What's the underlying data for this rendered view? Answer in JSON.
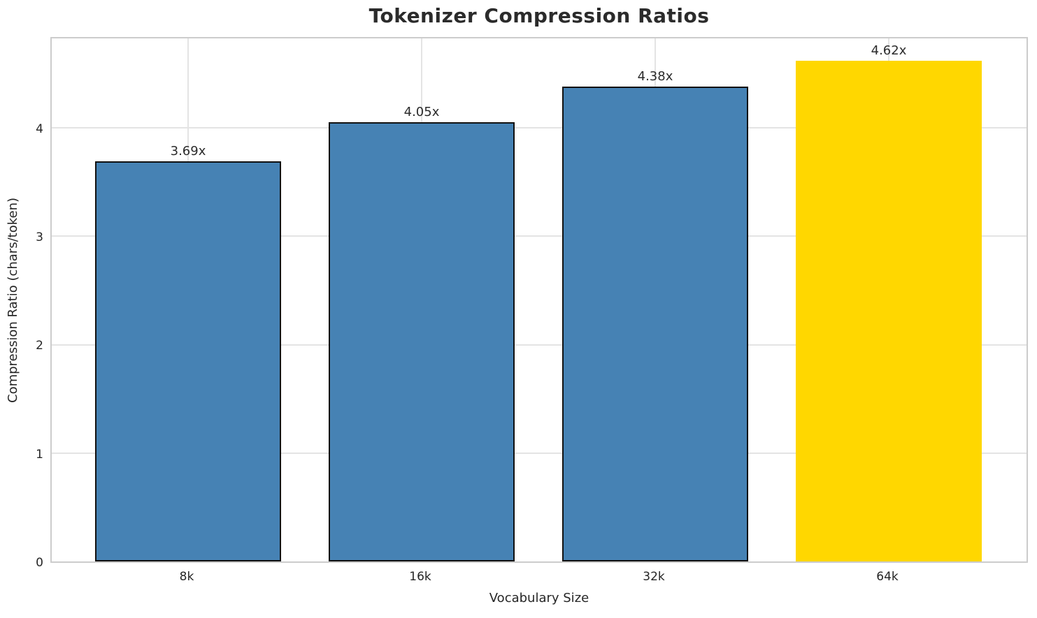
{
  "chart_data": {
    "type": "bar",
    "title": "Tokenizer Compression Ratios",
    "xlabel": "Vocabulary Size",
    "ylabel": "Compression Ratio (chars/token)",
    "categories": [
      "8k",
      "16k",
      "32k",
      "64k"
    ],
    "values": [
      3.69,
      4.05,
      4.38,
      4.62
    ],
    "bar_labels": [
      "3.69x",
      "4.05x",
      "4.38x",
      "4.62x"
    ],
    "yticks": [
      0,
      1,
      2,
      3,
      4
    ],
    "ylim": [
      0,
      4.85
    ],
    "grid": true,
    "legend": "none",
    "highlighted_category": "64k",
    "bar_colors": [
      "#4682B4",
      "#4682B4",
      "#4682B4",
      "#FFD700"
    ],
    "bar_edge_colors": [
      "#111111",
      "#111111",
      "#111111",
      "none"
    ],
    "colors": {
      "default_bar": "#4682B4",
      "highlight_bar": "#FFD700",
      "bar_edge": "#111111",
      "grid": "#e4e4e4",
      "spine": "#cccccc",
      "text": "#262626",
      "title": "#2b2b2b",
      "background": "#ffffff"
    }
  }
}
